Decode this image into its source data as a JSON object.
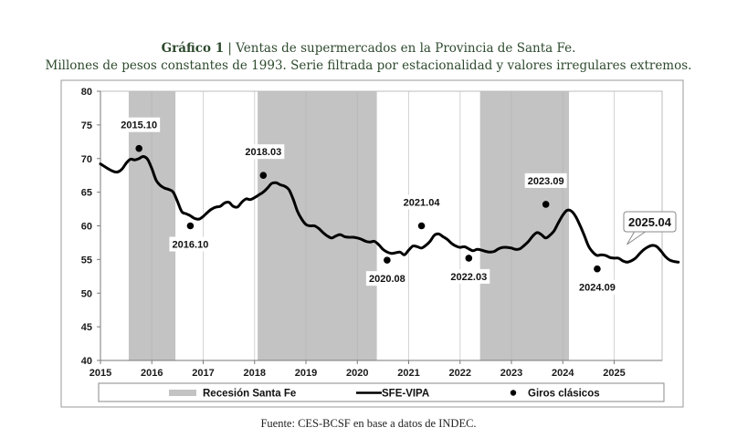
{
  "title": {
    "label": "Gráfico 1",
    "separator": "|",
    "line1": "Ventas de supermercados en la Provincia de Santa Fe.",
    "line2": "Millones de pesos constantes de 1993. Serie filtrada por estacionalidad y valores irregulares extremos."
  },
  "source": "Fuente: CES-BCSF en base a datos de INDEC.",
  "chart_data": {
    "type": "line",
    "title": "Ventas de supermercados en la Provincia de Santa Fe",
    "xlabel": "",
    "ylabel": "",
    "xlim": [
      2015,
      2025.92
    ],
    "ylim": [
      40,
      80
    ],
    "yticks": [
      "40",
      "45",
      "50",
      "55",
      "60",
      "65",
      "70",
      "75",
      "80"
    ],
    "xticks": [
      "2015",
      "2016",
      "2017",
      "2018",
      "2019",
      "2020",
      "2021",
      "2022",
      "2023",
      "2024",
      "2025"
    ],
    "grid": "vertical",
    "legend_position": "bottom",
    "legend": [
      "Recesión Santa Fe",
      "SFE-VIPA",
      "Giros clásicos"
    ],
    "recessions": [
      {
        "start": 2015.55,
        "end": 2016.46
      },
      {
        "start": 2018.06,
        "end": 2020.38
      },
      {
        "start": 2022.39,
        "end": 2024.12
      }
    ],
    "series": [
      {
        "name": "SFE-VIPA",
        "start": 2015.0,
        "step_months": 1,
        "values": [
          69.2,
          68.8,
          68.4,
          68.1,
          68.0,
          68.4,
          69.3,
          69.9,
          69.8,
          70.0,
          70.3,
          69.9,
          68.5,
          66.8,
          66.0,
          65.6,
          65.4,
          65.0,
          63.6,
          62.1,
          61.8,
          61.5,
          61.1,
          61.0,
          61.4,
          62.0,
          62.5,
          62.8,
          62.9,
          63.4,
          63.5,
          62.9,
          62.8,
          63.5,
          64.0,
          63.9,
          64.2,
          64.6,
          65.0,
          65.6,
          66.3,
          66.4,
          66.1,
          65.9,
          65.4,
          64.0,
          62.2,
          61.0,
          60.2,
          60.0,
          60.0,
          59.6,
          59.0,
          58.5,
          58.2,
          58.5,
          58.7,
          58.4,
          58.3,
          58.3,
          58.2,
          58.0,
          57.7,
          57.6,
          57.7,
          57.2,
          56.5,
          56.1,
          55.9,
          56.0,
          56.1,
          55.7,
          56.4,
          57.0,
          56.9,
          56.7,
          57.1,
          57.7,
          58.6,
          58.8,
          58.4,
          58.0,
          57.4,
          57.0,
          56.8,
          56.9,
          56.6,
          56.3,
          56.5,
          56.4,
          56.2,
          56.1,
          56.2,
          56.6,
          56.8,
          56.8,
          56.7,
          56.5,
          56.6,
          57.1,
          57.7,
          58.5,
          59.0,
          58.7,
          58.2,
          58.6,
          59.3,
          60.5,
          61.6,
          62.3,
          62.2,
          61.4,
          60.1,
          58.6,
          57.0,
          56.1,
          55.6,
          55.7,
          55.6,
          55.3,
          55.2,
          55.2,
          54.8,
          54.6,
          54.8,
          55.2,
          55.9,
          56.5,
          56.9,
          57.1,
          56.9,
          56.2,
          55.4,
          54.9,
          54.7,
          54.6
        ]
      }
    ],
    "turning_points": [
      {
        "label": "2015.10",
        "x": 2015.75,
        "y": 71.5
      },
      {
        "label": "2016.10",
        "x": 2016.75,
        "y": 60.0
      },
      {
        "label": "2018.03",
        "x": 2018.17,
        "y": 67.5
      },
      {
        "label": "2020.08",
        "x": 2020.58,
        "y": 54.9
      },
      {
        "label": "2021.04",
        "x": 2021.25,
        "y": 60.0
      },
      {
        "label": "2022.03",
        "x": 2022.17,
        "y": 55.2
      },
      {
        "label": "2023.09",
        "x": 2023.67,
        "y": 63.2
      },
      {
        "label": "2024.09",
        "x": 2024.67,
        "y": 53.6
      }
    ],
    "callout": {
      "label": "2025.04",
      "x": 2025.25,
      "y": 57.1
    }
  }
}
